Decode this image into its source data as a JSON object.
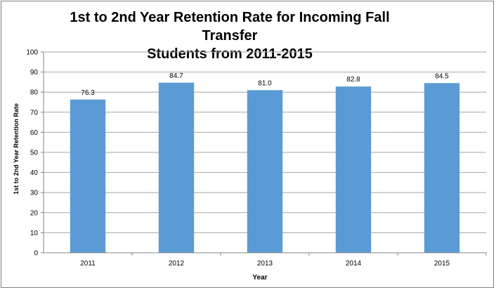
{
  "chart_data": {
    "type": "bar",
    "title_lines": [
      "1st to 2nd Year Retention Rate for Incoming Fall Transfer",
      "Students from 2011-2015"
    ],
    "xlabel": "Year",
    "ylabel": "1st to 2nd Year Retention Rate",
    "categories": [
      "2011",
      "2012",
      "2013",
      "2014",
      "2015"
    ],
    "values": [
      76.3,
      84.7,
      81.0,
      82.8,
      84.5
    ],
    "data_labels": [
      "76.3",
      "84.7",
      "81.0",
      "82.8",
      "84.5"
    ],
    "ylim": [
      0,
      100
    ],
    "yticks": [
      0,
      10,
      20,
      30,
      40,
      50,
      60,
      70,
      80,
      90,
      100
    ],
    "grid": true,
    "bar_color": "#5b9bd5",
    "grid_color": "#a6a6a6",
    "legend": "none"
  }
}
